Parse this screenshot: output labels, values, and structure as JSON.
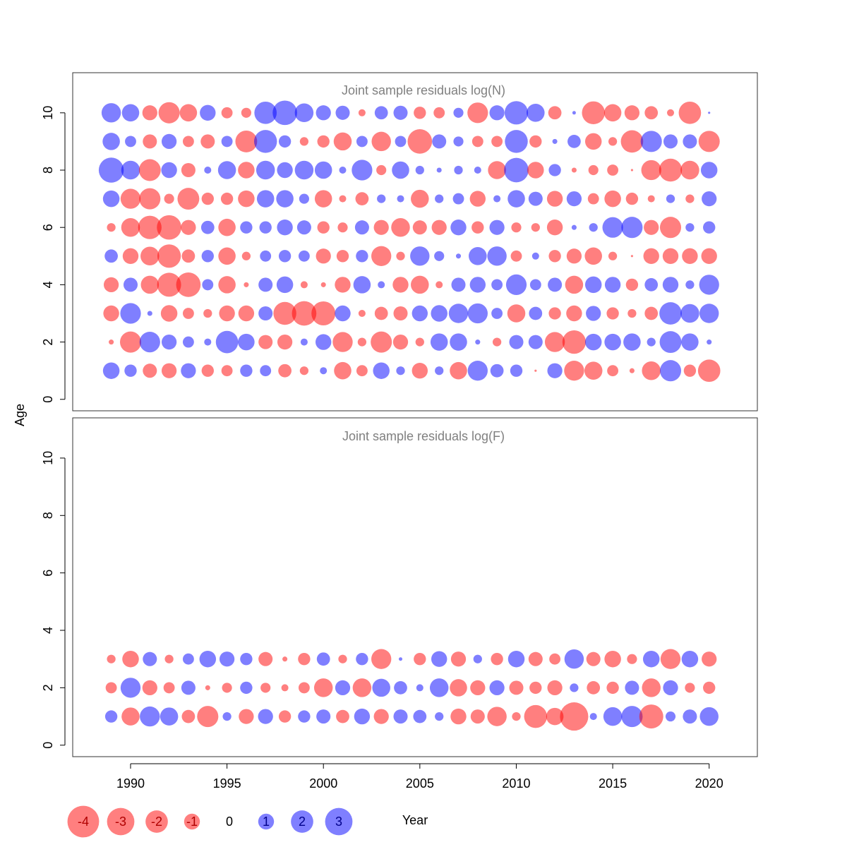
{
  "chart_data": {
    "type": "scatter",
    "xlabel": "Year",
    "ylabel": "Age",
    "xlim": [
      1987,
      2022.5
    ],
    "ylim": [
      -0.4,
      11.4
    ],
    "x_ticks": [
      1990,
      1995,
      2000,
      2005,
      2010,
      2015,
      2020
    ],
    "y_ticks": [
      0,
      2,
      4,
      6,
      8,
      10
    ],
    "years": [
      1989,
      1990,
      1991,
      1992,
      1993,
      1994,
      1995,
      1996,
      1997,
      1998,
      1999,
      2000,
      2001,
      2002,
      2003,
      2004,
      2005,
      2006,
      2007,
      2008,
      2009,
      2010,
      2011,
      2012,
      2013,
      2014,
      2015,
      2016,
      2017,
      2018,
      2019,
      2020
    ],
    "colors": {
      "negative": "#ff0000",
      "positive": "#0000ff",
      "opacity": 0.5
    },
    "panels": [
      {
        "title": "Joint sample residuals log(N)",
        "ages": [
          1,
          2,
          3,
          4,
          5,
          6,
          7,
          8,
          9,
          10
        ],
        "residuals": [
          [
            1.1,
            0.6,
            -0.8,
            -0.9,
            0.9,
            -0.6,
            -0.5,
            0.6,
            0.5,
            -0.7,
            -0.3,
            0.2,
            -1.2,
            -0.5,
            1.1,
            0.3,
            -1.0,
            0.3,
            -1.2,
            1.6,
            0.7,
            0.6,
            -0.02,
            0.9,
            -1.6,
            -1.3,
            -0.5,
            -0.1,
            -1.4,
            1.8,
            -0.6,
            -2.0
          ],
          [
            -0.1,
            -1.8,
            1.7,
            0.9,
            0.5,
            0.2,
            2.0,
            1.1,
            -0.8,
            -0.9,
            0.2,
            1.0,
            -1.6,
            -0.3,
            -1.8,
            -0.9,
            -0.3,
            1.2,
            1.2,
            0.1,
            -0.3,
            0.8,
            0.8,
            -1.6,
            -2.2,
            1.1,
            1.1,
            1.2,
            0.3,
            1.9,
            1.2,
            0.1
          ],
          [
            -1.0,
            1.7,
            0.1,
            -1.1,
            -0.5,
            -0.3,
            -1.0,
            -1.0,
            0.8,
            -2.1,
            -2.4,
            -2.3,
            1.0,
            -0.2,
            -0.7,
            -0.8,
            1.0,
            1.1,
            1.5,
            1.6,
            0.5,
            -1.3,
            0.7,
            -0.6,
            -1.0,
            0.9,
            -0.6,
            -0.3,
            -0.7,
            2.0,
            1.4,
            1.5
          ],
          [
            -0.9,
            0.8,
            -1.3,
            -2.3,
            -2.4,
            0.5,
            -1.2,
            -0.1,
            0.8,
            1.1,
            -0.2,
            -0.1,
            -1.0,
            1.2,
            0.2,
            -1.0,
            -1.3,
            -0.2,
            0.8,
            1.0,
            0.5,
            1.7,
            0.5,
            0.8,
            -1.3,
            1.1,
            1.0,
            -0.6,
            0.7,
            1.0,
            0.3,
            1.6
          ],
          [
            0.7,
            -1.0,
            -1.4,
            -2.2,
            -0.7,
            0.6,
            -1.2,
            -0.3,
            0.5,
            0.6,
            0.5,
            -0.9,
            -0.6,
            0.6,
            -1.6,
            -0.3,
            1.5,
            0.4,
            0.1,
            1.3,
            1.5,
            -0.5,
            0.2,
            -0.6,
            -0.9,
            -1.2,
            -0.3,
            -0.02,
            -1.0,
            -1.0,
            -1.0,
            -1.0
          ],
          [
            -0.3,
            -1.4,
            -2.2,
            -2.4,
            -0.9,
            0.7,
            -1.2,
            0.6,
            0.6,
            1.0,
            0.8,
            -0.6,
            -0.4,
            0.8,
            -0.9,
            -1.4,
            -0.8,
            -0.9,
            1.0,
            -0.6,
            0.9,
            -0.4,
            -0.3,
            -1.0,
            0.1,
            0.3,
            1.7,
            1.8,
            -0.9,
            -1.8,
            0.3,
            0.6
          ],
          [
            1.1,
            -1.6,
            -1.8,
            -0.4,
            -1.9,
            -0.6,
            -0.6,
            -1.1,
            1.2,
            1.2,
            0.4,
            -1.2,
            -0.2,
            -0.7,
            0.3,
            0.2,
            -1.3,
            0.3,
            0.5,
            -1.0,
            0.2,
            1.2,
            0.8,
            -1.0,
            0.9,
            -0.5,
            -1.1,
            -0.6,
            -0.2,
            0.3,
            -0.3,
            0.9
          ],
          [
            2.5,
            1.4,
            -1.9,
            1.0,
            -0.8,
            0.2,
            1.3,
            -1.1,
            1.4,
            1.0,
            1.4,
            1.2,
            0.2,
            1.7,
            -0.4,
            1.2,
            0.3,
            0.1,
            0.3,
            0.2,
            -1.3,
            2.4,
            -1.1,
            0.6,
            -0.1,
            -0.4,
            -0.5,
            -0.02,
            -1.6,
            -2.1,
            -1.4,
            1.1
          ],
          [
            1.2,
            0.5,
            -0.8,
            0.9,
            -0.5,
            -0.8,
            0.5,
            -1.9,
            2.1,
            0.6,
            -0.3,
            -0.6,
            -1.3,
            0.5,
            -1.5,
            0.5,
            -2.4,
            0.8,
            0.4,
            -0.5,
            -0.5,
            2.1,
            -0.6,
            0.1,
            0.7,
            -1.1,
            -0.3,
            -2.0,
            1.8,
            0.8,
            0.8,
            -1.8
          ],
          [
            1.5,
            1.2,
            -0.9,
            -1.8,
            -1.2,
            1.0,
            -0.5,
            -0.4,
            2.0,
            2.4,
            1.4,
            0.9,
            0.8,
            -0.2,
            0.7,
            0.8,
            -0.6,
            -0.5,
            0.4,
            -1.7,
            0.9,
            2.2,
            1.3,
            -0.7,
            0.05,
            -2.1,
            -1.2,
            -0.9,
            -0.7,
            -0.2,
            -2.0,
            0.02
          ]
        ]
      },
      {
        "title": "Joint sample residuals log(F)",
        "ages": [
          1,
          2,
          3
        ],
        "residuals": [
          [
            0.6,
            -1.3,
            1.6,
            1.3,
            -0.7,
            -1.8,
            0.3,
            -0.9,
            0.9,
            -0.6,
            0.6,
            0.8,
            -0.7,
            1.0,
            -0.9,
            0.8,
            0.7,
            0.3,
            -1.0,
            -0.8,
            -1.5,
            -0.3,
            -2.1,
            -1.2,
            -3.2,
            0.2,
            1.4,
            1.8,
            -2.3,
            0.4,
            0.8,
            1.4
          ],
          [
            -0.5,
            1.6,
            -0.9,
            -0.5,
            0.8,
            -0.1,
            -0.4,
            0.6,
            -0.4,
            -0.2,
            -0.5,
            -1.4,
            0.9,
            -1.4,
            1.3,
            0.7,
            0.2,
            1.4,
            -1.2,
            -0.9,
            0.9,
            -0.8,
            -0.6,
            -0.9,
            0.3,
            -0.7,
            -0.6,
            0.8,
            -1.4,
            0.9,
            -0.4,
            -0.6
          ],
          [
            -0.3,
            -1.1,
            0.8,
            -0.3,
            0.5,
            1.1,
            0.9,
            0.6,
            -0.8,
            -0.1,
            -0.6,
            0.7,
            -0.3,
            0.6,
            -1.6,
            0.05,
            -0.6,
            1.0,
            -0.9,
            0.3,
            -0.6,
            1.1,
            -0.8,
            -0.5,
            1.5,
            -0.8,
            -1.1,
            -0.4,
            1.1,
            -1.6,
            1.1,
            -0.9
          ]
        ]
      }
    ],
    "legend": {
      "placement": "bottom-left",
      "items": [
        {
          "value": -4,
          "label": "-4"
        },
        {
          "value": -3,
          "label": "-3"
        },
        {
          "value": -2,
          "label": "-2"
        },
        {
          "value": -1,
          "label": "-1"
        },
        {
          "value": 0,
          "label": "0"
        },
        {
          "value": 1,
          "label": "1"
        },
        {
          "value": 2,
          "label": "2"
        },
        {
          "value": 3,
          "label": "3"
        }
      ]
    }
  }
}
